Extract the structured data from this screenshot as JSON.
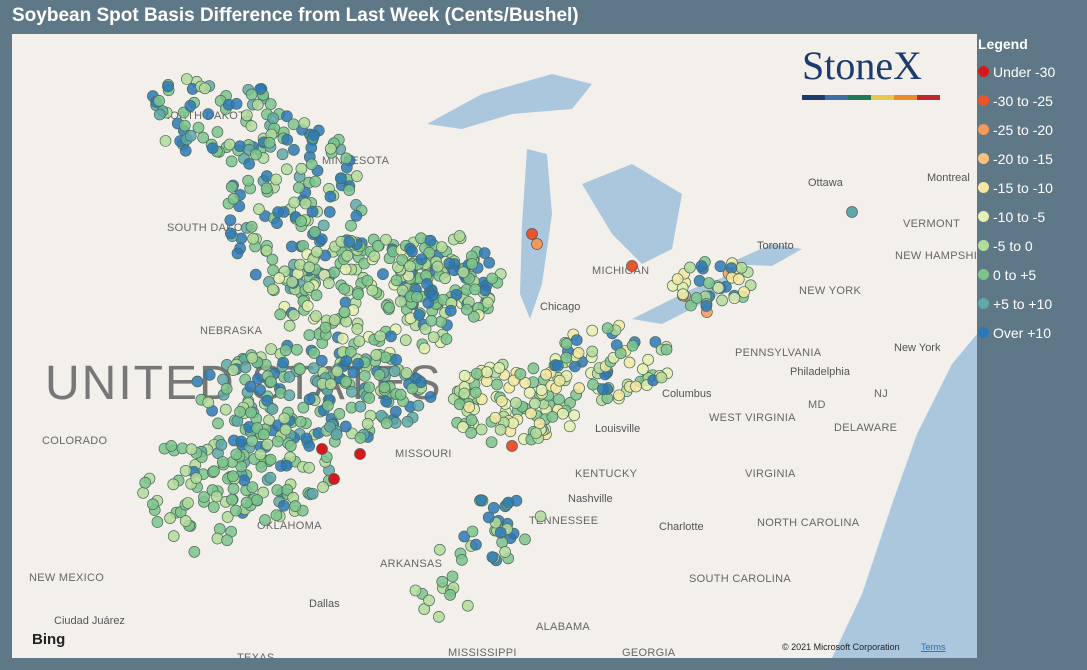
{
  "title": "Soybean Spot Basis Difference from Last Week (Cents/Bushel)",
  "logo": "StoneX",
  "legend": {
    "title": "Legend",
    "items": [
      {
        "label": "Under -30",
        "color": "#d7191c"
      },
      {
        "label": "-30 to -25",
        "color": "#e8552f"
      },
      {
        "label": "-25 to -20",
        "color": "#f39a5a"
      },
      {
        "label": "-20 to -15",
        "color": "#f7c27c"
      },
      {
        "label": "-15 to -10",
        "color": "#f4e8a0"
      },
      {
        "label": "-10 to -5",
        "color": "#e6f0b2"
      },
      {
        "label": "-5 to 0",
        "color": "#b3db9a"
      },
      {
        "label": "0 to +5",
        "color": "#7cc48c"
      },
      {
        "label": "+5 to +10",
        "color": "#5fa8a8"
      },
      {
        "label": "Over +10",
        "color": "#2b78b6"
      }
    ]
  },
  "map_labels": [
    "UNITED STATES",
    "NORTH DAKOTA",
    "MINNESOTA",
    "SOUTH DAKOTA",
    "NEBRASKA",
    "COLORADO",
    "MISSOURI",
    "KENTUCKY",
    "TENNESSEE",
    "OKLAHOMA",
    "ARKANSAS",
    "NEW MEXICO",
    "ALABAMA",
    "MISSISSIPPI",
    "GEORGIA",
    "TEXAS",
    "PENNSYLVANIA",
    "NEW YORK",
    "WEST VIRGINIA",
    "VIRGINIA",
    "NORTH CAROLINA",
    "SOUTH CAROLINA",
    "DELAWARE",
    "MD",
    "NJ",
    "VERMONT",
    "NEW HAMPSHIRE",
    "MICHIGAN",
    "Ottawa",
    "Montreal",
    "Toronto",
    "Chicago",
    "Columbus",
    "Philadelphia",
    "New York",
    "Louisville",
    "Nashville",
    "Charlotte",
    "Dallas",
    "Ciudad Juárez"
  ],
  "attribution": {
    "bing": "Bing",
    "copyright": "© 2021 Microsoft Corporation",
    "terms": "Terms"
  }
}
